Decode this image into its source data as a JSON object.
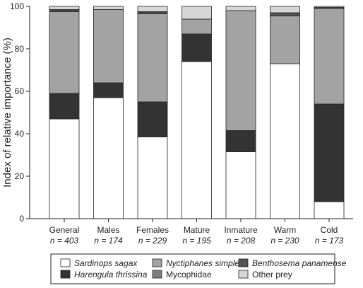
{
  "chart_data": {
    "type": "bar",
    "stacked": true,
    "ylabel": "Index of relative importance (%)",
    "ylim": [
      0,
      100
    ],
    "yticks": [
      "0",
      "20",
      "40",
      "60",
      "80",
      "100"
    ],
    "categories": [
      {
        "label": "General",
        "n": "n = 403"
      },
      {
        "label": "Males",
        "n": "n = 174"
      },
      {
        "label": "Females",
        "n": "n = 229"
      },
      {
        "label": "Mature",
        "n": "n = 195"
      },
      {
        "label": "Inmature",
        "n": "n = 208"
      },
      {
        "label": "Warm",
        "n": "n = 230"
      },
      {
        "label": "Cold",
        "n": "n = 173"
      }
    ],
    "series": [
      {
        "name": "Sardinops sagax",
        "italic": true,
        "color": "#ffffff",
        "values": [
          47,
          57,
          38.5,
          74,
          31.5,
          73,
          8
        ]
      },
      {
        "name": "Harengula thrissina",
        "italic": true,
        "color": "#333333",
        "values": [
          12,
          7,
          16.5,
          13,
          10,
          0,
          46
        ]
      },
      {
        "name": "Nyctiphanes simplex",
        "italic": true,
        "color": "#a3a3a3",
        "values": [
          38.5,
          34.5,
          41.5,
          7,
          56.5,
          22.5,
          45
        ]
      },
      {
        "name": "Mycophidae",
        "italic": false,
        "color": "#7f7f7f",
        "values": [
          0.5,
          0,
          0.5,
          0,
          0,
          0,
          0
        ]
      },
      {
        "name": "Benthosema panamense",
        "italic": true,
        "color": "#555555",
        "values": [
          0.5,
          0,
          0.5,
          0,
          0,
          1.5,
          0.5
        ]
      },
      {
        "name": "Other prey",
        "italic": false,
        "color": "#d6d6d6",
        "values": [
          1.5,
          1.5,
          2.5,
          6,
          2,
          3,
          0.5
        ]
      }
    ],
    "legend": {
      "position": "bottom",
      "columns": 3
    },
    "grid": false
  }
}
